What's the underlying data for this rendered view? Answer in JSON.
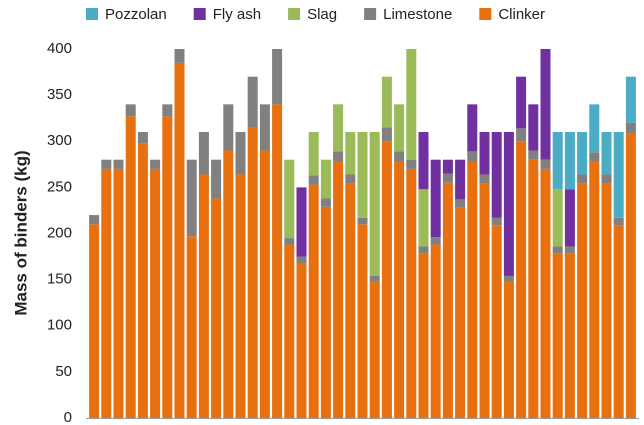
{
  "chart_data": {
    "type": "stacked-bar",
    "y_label": "Mass of binders (kg)",
    "categories": [
      null,
      null,
      null,
      null,
      null,
      null,
      null,
      null,
      null,
      null,
      null,
      null,
      null,
      null,
      null,
      null,
      null,
      null,
      null,
      null,
      null,
      null,
      null,
      null,
      null,
      null,
      null,
      null,
      null,
      null,
      null,
      null,
      null,
      null,
      null,
      null,
      null,
      null,
      null,
      null,
      null,
      null,
      null,
      null,
      null
    ],
    "series": [
      {
        "name": "Pozzolan",
        "color": "#4bacc6",
        "values": [
          0,
          0,
          0,
          0,
          0,
          0,
          0,
          0,
          0,
          0,
          0,
          0,
          0,
          0,
          0,
          0,
          0,
          0,
          0,
          0,
          0,
          0,
          0,
          0,
          0,
          0,
          0,
          0,
          0,
          0,
          0,
          0,
          0,
          0,
          0,
          0,
          0,
          0,
          62,
          62,
          46,
          52,
          46,
          93,
          50
        ]
      },
      {
        "name": "Fly ash",
        "color": "#7030a0",
        "values": [
          0,
          0,
          0,
          0,
          0,
          0,
          0,
          0,
          0,
          0,
          0,
          0,
          0,
          0,
          0,
          0,
          0,
          75,
          0,
          0,
          0,
          0,
          0,
          0,
          0,
          0,
          0,
          62,
          84,
          15,
          43,
          51,
          46,
          93,
          156,
          56,
          50,
          120,
          0,
          62,
          0,
          0,
          0,
          0,
          0
        ]
      },
      {
        "name": "Slag",
        "color": "#9bbb59",
        "values": [
          0,
          0,
          0,
          0,
          0,
          0,
          0,
          0,
          0,
          0,
          0,
          0,
          0,
          0,
          0,
          0,
          85,
          0,
          47,
          42,
          51,
          46,
          93,
          156,
          55,
          51,
          120,
          62,
          0,
          0,
          0,
          0,
          0,
          0,
          0,
          0,
          0,
          0,
          62,
          0,
          0,
          0,
          0,
          0,
          0
        ]
      },
      {
        "name": "Limestone",
        "color": "#808080",
        "values": [
          10,
          10,
          10,
          13,
          12,
          10,
          13,
          15,
          83,
          46,
          42,
          50,
          46,
          55,
          50,
          60,
          7,
          7,
          10,
          9,
          11,
          10,
          7,
          6,
          15,
          11,
          10,
          8,
          8,
          10,
          9,
          11,
          10,
          8,
          6,
          14,
          10,
          10,
          8,
          8,
          10,
          10,
          10,
          8,
          12
        ]
      },
      {
        "name": "Clinker",
        "color": "#e8700f",
        "values": [
          210,
          270,
          270,
          327,
          298,
          270,
          327,
          385,
          197,
          264,
          238,
          290,
          264,
          315,
          290,
          340,
          188,
          168,
          253,
          229,
          278,
          254,
          210,
          148,
          300,
          278,
          270,
          178,
          188,
          255,
          228,
          278,
          254,
          209,
          148,
          300,
          280,
          270,
          178,
          178,
          254,
          278,
          254,
          209,
          308
        ]
      }
    ],
    "ylim": [
      0,
      400
    ],
    "yticks": [
      0,
      50,
      100,
      150,
      200,
      250,
      300,
      350,
      400
    ],
    "grid": false,
    "legend": "top"
  }
}
